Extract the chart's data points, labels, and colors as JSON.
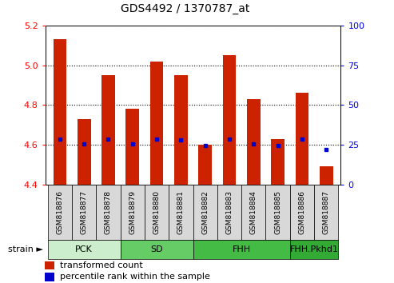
{
  "title": "GDS4492 / 1370787_at",
  "samples": [
    "GSM818876",
    "GSM818877",
    "GSM818878",
    "GSM818879",
    "GSM818880",
    "GSM818881",
    "GSM818882",
    "GSM818883",
    "GSM818884",
    "GSM818885",
    "GSM818886",
    "GSM818887"
  ],
  "transformed_count": [
    5.13,
    4.73,
    4.95,
    4.78,
    5.02,
    4.95,
    4.6,
    5.05,
    4.83,
    4.63,
    4.86,
    4.49
  ],
  "percentile_rank_values": [
    4.628,
    4.603,
    4.628,
    4.603,
    4.628,
    4.625,
    4.598,
    4.628,
    4.603,
    4.598,
    4.628,
    4.575
  ],
  "ylim_left": [
    4.4,
    5.2
  ],
  "ylim_right": [
    0,
    100
  ],
  "yticks_left": [
    4.4,
    4.6,
    4.8,
    5.0,
    5.2
  ],
  "yticks_right": [
    0,
    25,
    50,
    75,
    100
  ],
  "bar_color": "#cc2200",
  "dot_color": "#0000cc",
  "groups": [
    {
      "label": "PCK",
      "start": 0,
      "end": 2,
      "color": "#cceecc"
    },
    {
      "label": "SD",
      "start": 3,
      "end": 5,
      "color": "#66cc66"
    },
    {
      "label": "FHH",
      "start": 6,
      "end": 9,
      "color": "#44bb44"
    },
    {
      "label": "FHH.Pkhd1",
      "start": 10,
      "end": 11,
      "color": "#33aa33"
    }
  ],
  "legend_red_label": "transformed count",
  "legend_blue_label": "percentile rank within the sample",
  "strain_label": "strain",
  "base_value": 4.4
}
